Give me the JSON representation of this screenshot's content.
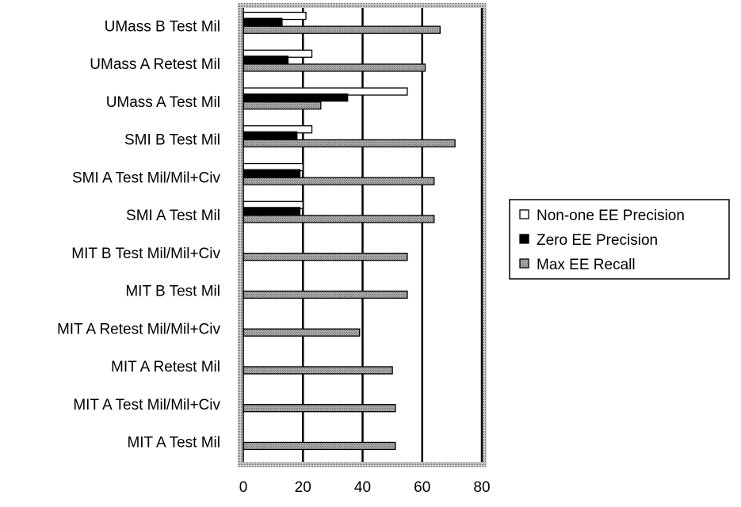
{
  "chart_data": {
    "type": "bar",
    "orientation": "horizontal",
    "title": "",
    "xlabel": "",
    "ylabel": "",
    "xlim": [
      0,
      80
    ],
    "xticks": [
      0,
      20,
      40,
      60,
      80
    ],
    "grid": "vertical major gridlines",
    "legend_position": "right",
    "categories": [
      "UMass B Test Mil",
      "UMass A Retest Mil",
      "UMass A Test Mil",
      "SMI B Test Mil",
      "SMI A Test Mil/Mil+Civ",
      "SMI A Test Mil",
      "MIT B Test Mil/Mil+Civ",
      "MIT B Test Mil",
      "MIT A Retest Mil/Mil+Civ",
      "MIT A Retest Mil",
      "MIT A Test Mil/Mil+Civ",
      "MIT A Test Mil"
    ],
    "series": [
      {
        "name": "Non-one EE Precision",
        "color": "#ffffff",
        "values": [
          21,
          23,
          55,
          23,
          20,
          20,
          0,
          0,
          0,
          0,
          0,
          0
        ]
      },
      {
        "name": "Zero EE Precision",
        "color": "#000000",
        "values": [
          13,
          15,
          35,
          18,
          19,
          19,
          0,
          0,
          0,
          0,
          0,
          0
        ]
      },
      {
        "name": "Max EE Recall",
        "color": "#9a9a9a",
        "values": [
          66,
          61,
          26,
          71,
          64,
          64,
          55,
          55,
          39,
          50,
          51,
          51
        ]
      }
    ]
  }
}
